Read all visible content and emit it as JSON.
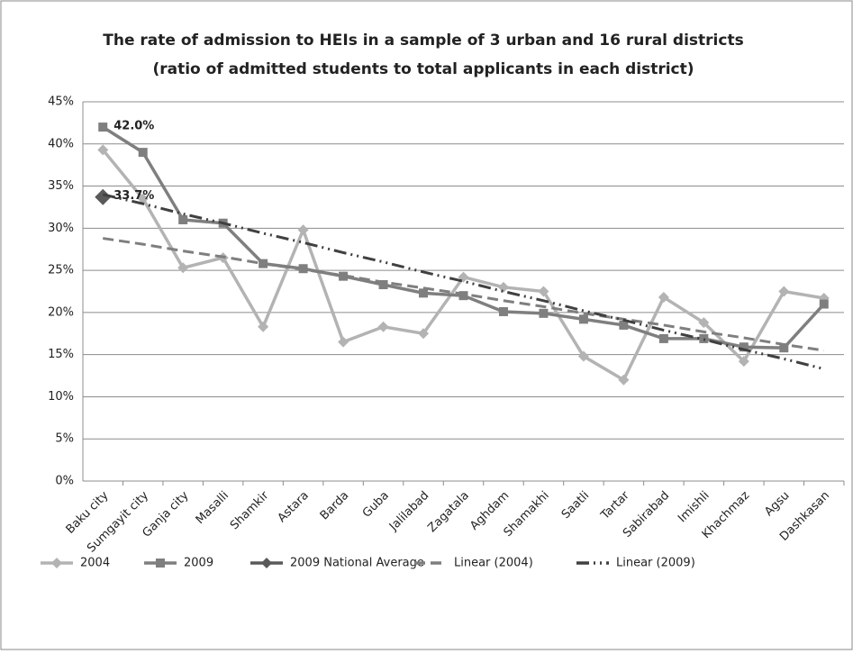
{
  "chart_data": {
    "type": "line",
    "title": "The rate of admission to HEIs in a sample of 3 urban and 16 rural districts",
    "subtitle": "(ratio of admitted students to total applicants in each district)",
    "categories": [
      "Baku city",
      "Sumgayit city",
      "Ganja city",
      "Masalli",
      "Shamkir",
      "Astara",
      "Barda",
      "Guba",
      "Jalilabad",
      "Zagatala",
      "Aghdam",
      "Shamakhi",
      "Saatli",
      "Tartar",
      "Sabirabad",
      "Imishli",
      "Khachmaz",
      "Agsu",
      "Dashkasan"
    ],
    "series": [
      {
        "name": "2004",
        "color": "#b3b3b3",
        "marker": "diamond",
        "dash": "solid",
        "values": [
          39.3,
          33.5,
          25.3,
          26.5,
          18.3,
          29.8,
          16.5,
          18.3,
          17.5,
          24.2,
          23.0,
          22.5,
          14.8,
          12.0,
          21.8,
          18.8,
          14.2,
          22.5,
          21.7
        ]
      },
      {
        "name": "2009",
        "color": "#7f7f7f",
        "marker": "square",
        "dash": "solid",
        "values": [
          42.0,
          39.0,
          31.0,
          30.6,
          25.8,
          25.2,
          24.3,
          23.3,
          22.3,
          22.0,
          20.1,
          19.9,
          19.2,
          18.5,
          16.9,
          16.9,
          15.9,
          15.8,
          21.0
        ],
        "value_labels": [
          "42.0%",
          null,
          null,
          null,
          null,
          null,
          null,
          null,
          null,
          null,
          null,
          null,
          null,
          null,
          null,
          null,
          null,
          null,
          null
        ]
      },
      {
        "name": "2009 National Average",
        "color": "#595959",
        "marker": "bigdiamond",
        "dash": "solid",
        "values": [
          33.7,
          null,
          null,
          null,
          null,
          null,
          null,
          null,
          null,
          null,
          null,
          null,
          null,
          null,
          null,
          null,
          null,
          null,
          null
        ],
        "value_labels": [
          "33.7%",
          null,
          null,
          null,
          null,
          null,
          null,
          null,
          null,
          null,
          null,
          null,
          null,
          null,
          null,
          null,
          null,
          null,
          null
        ]
      },
      {
        "name": "Linear (2004)",
        "color": "#7f7f7f",
        "marker": "none",
        "dash": "dash",
        "values": [
          28.8,
          28.1,
          27.3,
          26.6,
          25.8,
          25.1,
          24.4,
          23.6,
          22.9,
          22.2,
          21.4,
          20.7,
          19.9,
          19.2,
          18.5,
          17.7,
          17.0,
          16.2,
          15.5
        ]
      },
      {
        "name": "Linear (2009)",
        "color": "#404040",
        "marker": "none",
        "dash": "dashdot",
        "values": [
          34.0,
          32.9,
          31.7,
          30.6,
          29.4,
          28.3,
          27.1,
          26.0,
          24.8,
          23.7,
          22.5,
          21.4,
          20.2,
          19.1,
          17.9,
          16.8,
          15.6,
          14.5,
          13.3
        ]
      }
    ],
    "ylim": [
      0,
      45
    ],
    "yticks": [
      {
        "value": 0,
        "label": "0%"
      },
      {
        "value": 5,
        "label": "5%"
      },
      {
        "value": 10,
        "label": "10%"
      },
      {
        "value": 15,
        "label": "15%"
      },
      {
        "value": 20,
        "label": "20%"
      },
      {
        "value": 25,
        "label": "25%"
      },
      {
        "value": 30,
        "label": "30%"
      },
      {
        "value": 35,
        "label": "35%"
      },
      {
        "value": 40,
        "label": "40%"
      },
      {
        "value": 45,
        "label": "45%"
      }
    ],
    "grid": true,
    "legend": "bottom"
  }
}
